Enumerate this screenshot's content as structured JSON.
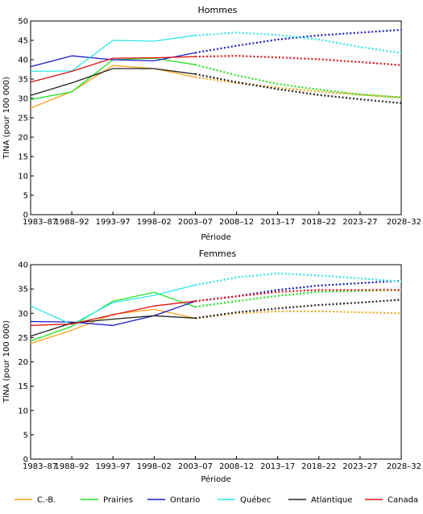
{
  "chart_data": [
    {
      "type": "line",
      "title": "Hommes",
      "xlabel": "Période",
      "ylabel": "TINA (pour 100 000)",
      "categories": [
        "1983–87",
        "1988–92",
        "1993–97",
        "1998–02",
        "2003–07",
        "2008–12",
        "2013–17",
        "2018–22",
        "2023–27",
        "2028–32"
      ],
      "ylim": [
        0,
        50
      ],
      "yticks": [
        0,
        5,
        10,
        15,
        20,
        25,
        30,
        35,
        40,
        45,
        50
      ],
      "grid": false,
      "observed_through": "2003–07",
      "series": [
        {
          "name": "C.-B.",
          "color": "#f7a21b",
          "values": [
            27.5,
            31.8,
            38.5,
            37.7,
            35.5,
            34.0,
            32.8,
            31.8,
            31.0,
            30.2
          ]
        },
        {
          "name": "Prairies",
          "color": "#22e622",
          "values": [
            29.7,
            31.7,
            40.0,
            40.4,
            38.7,
            36.0,
            33.7,
            32.3,
            31.0,
            30.3
          ]
        },
        {
          "name": "Ontario",
          "color": "#1a1acc",
          "values": [
            38.2,
            41.0,
            40.0,
            39.7,
            41.8,
            43.6,
            45.2,
            46.3,
            47.0,
            47.7
          ]
        },
        {
          "name": "Québec",
          "color": "#2ee6ea",
          "values": [
            37.0,
            37.1,
            45.0,
            44.8,
            46.3,
            47.0,
            46.4,
            45.2,
            43.3,
            41.7
          ]
        },
        {
          "name": "Atlantique",
          "color": "#222222",
          "values": [
            30.8,
            34.0,
            37.7,
            37.7,
            36.3,
            34.2,
            32.4,
            30.9,
            29.8,
            28.8
          ]
        },
        {
          "name": "Canada",
          "color": "#e01010",
          "values": [
            34.2,
            37.0,
            40.4,
            40.5,
            40.8,
            41.0,
            40.6,
            40.1,
            39.4,
            38.6
          ]
        }
      ]
    },
    {
      "type": "line",
      "title": "Femmes",
      "xlabel": "Période",
      "ylabel": "TINA (pour 100 000)",
      "categories": [
        "1983–87",
        "1988–92",
        "1993–97",
        "1998–02",
        "2003–07",
        "2008–12",
        "2013–17",
        "2018–22",
        "2023–27",
        "2028–32"
      ],
      "ylim": [
        0,
        40
      ],
      "yticks": [
        0,
        5,
        10,
        15,
        20,
        25,
        30,
        35,
        40
      ],
      "grid": false,
      "observed_through": "2003–07",
      "series": [
        {
          "name": "C.-B.",
          "color": "#f7a21b",
          "values": [
            23.8,
            26.5,
            29.8,
            30.8,
            29.0,
            30.0,
            30.4,
            30.4,
            30.2,
            30.0
          ]
        },
        {
          "name": "Prairies",
          "color": "#22e622",
          "values": [
            24.3,
            27.3,
            32.5,
            34.3,
            31.3,
            32.5,
            33.6,
            34.4,
            34.6,
            34.8
          ]
        },
        {
          "name": "Ontario",
          "color": "#1a1acc",
          "values": [
            28.3,
            28.2,
            27.5,
            29.5,
            32.5,
            33.5,
            34.8,
            35.7,
            36.2,
            36.7
          ]
        },
        {
          "name": "Québec",
          "color": "#2ee6ea",
          "values": [
            31.5,
            27.7,
            32.2,
            33.7,
            35.8,
            37.4,
            38.2,
            37.8,
            37.2,
            36.5
          ]
        },
        {
          "name": "Atlantique",
          "color": "#222222",
          "values": [
            25.3,
            28.0,
            28.8,
            29.5,
            29.0,
            30.2,
            31.0,
            31.7,
            32.2,
            32.8
          ]
        },
        {
          "name": "Canada",
          "color": "#e01010",
          "values": [
            27.5,
            27.8,
            29.7,
            31.5,
            32.5,
            33.5,
            34.4,
            34.8,
            34.8,
            34.8
          ]
        }
      ]
    }
  ],
  "legend": {
    "placement": "bottom",
    "items": [
      {
        "label": "C.-B.",
        "color": "#f7a21b"
      },
      {
        "label": "Prairies",
        "color": "#22e622"
      },
      {
        "label": "Ontario",
        "color": "#1a1acc"
      },
      {
        "label": "Québec",
        "color": "#2ee6ea"
      },
      {
        "label": "Atlantique",
        "color": "#222222"
      },
      {
        "label": "Canada",
        "color": "#e01010"
      }
    ]
  }
}
